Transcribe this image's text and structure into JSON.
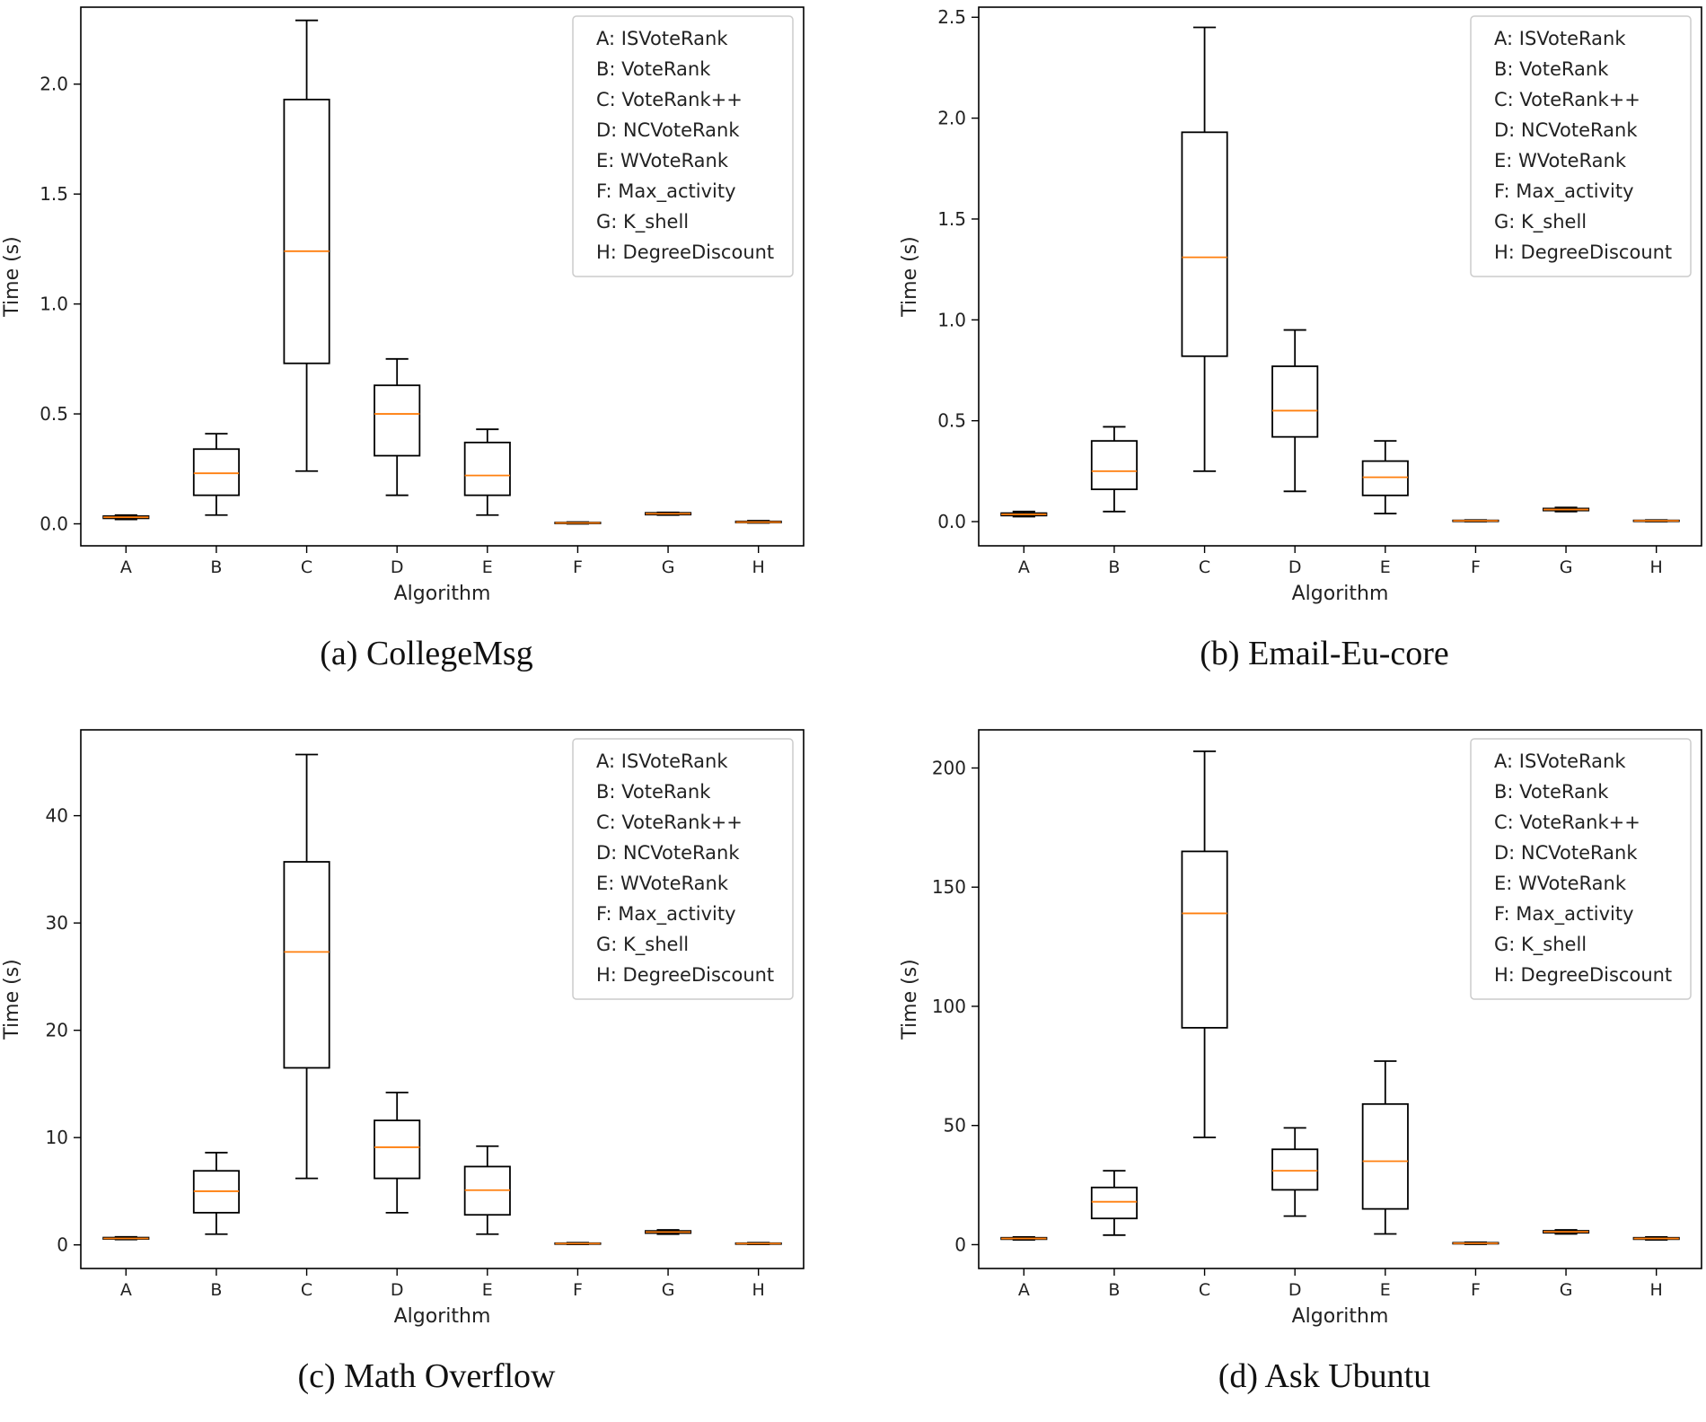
{
  "chart_data": [
    {
      "type": "box",
      "caption": "(a) CollegeMsg",
      "xlabel": "Algorithm",
      "ylabel": "Time (s)",
      "ylim": [
        -0.1,
        2.35
      ],
      "yticks": [
        0.0,
        0.5,
        1.0,
        1.5,
        2.0
      ],
      "ytick_labels": [
        "0.0",
        "0.5",
        "1.0",
        "1.5",
        "2.0"
      ],
      "categories": [
        "A",
        "B",
        "C",
        "D",
        "E",
        "F",
        "G",
        "H"
      ],
      "legend": [
        "A: ISVoteRank",
        "B: VoteRank",
        "C: VoteRank++",
        "D: NCVoteRank",
        "E: WVoteRank",
        "F: Max_activity",
        "G: K_shell",
        "H: DegreeDiscount"
      ],
      "boxes": [
        {
          "min": 0.02,
          "q1": 0.025,
          "median": 0.03,
          "q3": 0.035,
          "max": 0.04
        },
        {
          "min": 0.04,
          "q1": 0.13,
          "median": 0.23,
          "q3": 0.34,
          "max": 0.41
        },
        {
          "min": 0.24,
          "q1": 0.73,
          "median": 1.24,
          "q3": 1.93,
          "max": 2.29
        },
        {
          "min": 0.13,
          "q1": 0.31,
          "median": 0.5,
          "q3": 0.63,
          "max": 0.75
        },
        {
          "min": 0.04,
          "q1": 0.13,
          "median": 0.22,
          "q3": 0.37,
          "max": 0.43
        },
        {
          "min": 0.0,
          "q1": 0.002,
          "median": 0.004,
          "q3": 0.006,
          "max": 0.008
        },
        {
          "min": 0.04,
          "q1": 0.042,
          "median": 0.046,
          "q3": 0.05,
          "max": 0.052
        },
        {
          "min": 0.004,
          "q1": 0.006,
          "median": 0.008,
          "q3": 0.011,
          "max": 0.014
        }
      ]
    },
    {
      "type": "box",
      "caption": "(b) Email-Eu-core",
      "xlabel": "Algorithm",
      "ylabel": "Time (s)",
      "ylim": [
        -0.12,
        2.55
      ],
      "yticks": [
        0.0,
        0.5,
        1.0,
        1.5,
        2.0,
        2.5
      ],
      "ytick_labels": [
        "0.0",
        "0.5",
        "1.0",
        "1.5",
        "2.0",
        "2.5"
      ],
      "categories": [
        "A",
        "B",
        "C",
        "D",
        "E",
        "F",
        "G",
        "H"
      ],
      "legend": [
        "A: ISVoteRank",
        "B: VoteRank",
        "C: VoteRank++",
        "D: NCVoteRank",
        "E: WVoteRank",
        "F: Max_activity",
        "G: K_shell",
        "H: DegreeDiscount"
      ],
      "boxes": [
        {
          "min": 0.025,
          "q1": 0.03,
          "median": 0.036,
          "q3": 0.042,
          "max": 0.05
        },
        {
          "min": 0.05,
          "q1": 0.16,
          "median": 0.25,
          "q3": 0.4,
          "max": 0.47
        },
        {
          "min": 0.25,
          "q1": 0.82,
          "median": 1.31,
          "q3": 1.93,
          "max": 2.45
        },
        {
          "min": 0.15,
          "q1": 0.42,
          "median": 0.55,
          "q3": 0.77,
          "max": 0.95
        },
        {
          "min": 0.04,
          "q1": 0.13,
          "median": 0.22,
          "q3": 0.3,
          "max": 0.4
        },
        {
          "min": 0.0,
          "q1": 0.002,
          "median": 0.004,
          "q3": 0.006,
          "max": 0.008
        },
        {
          "min": 0.05,
          "q1": 0.055,
          "median": 0.06,
          "q3": 0.065,
          "max": 0.07
        },
        {
          "min": 0.0,
          "q1": 0.002,
          "median": 0.004,
          "q3": 0.006,
          "max": 0.008
        }
      ]
    },
    {
      "type": "box",
      "caption": "(c) Math Overflow",
      "xlabel": "Algorithm",
      "ylabel": "Time (s)",
      "ylim": [
        -2.2,
        48
      ],
      "yticks": [
        0,
        10,
        20,
        30,
        40
      ],
      "ytick_labels": [
        "0",
        "10",
        "20",
        "30",
        "40"
      ],
      "categories": [
        "A",
        "B",
        "C",
        "D",
        "E",
        "F",
        "G",
        "H"
      ],
      "legend": [
        "A: ISVoteRank",
        "B: VoteRank",
        "C: VoteRank++",
        "D: NCVoteRank",
        "E: WVoteRank",
        "F: Max_activity",
        "G: K_shell",
        "H: DegreeDiscount"
      ],
      "boxes": [
        {
          "min": 0.5,
          "q1": 0.55,
          "median": 0.6,
          "q3": 0.68,
          "max": 0.75
        },
        {
          "min": 1.0,
          "q1": 3.0,
          "median": 5.0,
          "q3": 6.9,
          "max": 8.6
        },
        {
          "min": 6.2,
          "q1": 16.5,
          "median": 27.3,
          "q3": 35.7,
          "max": 45.7
        },
        {
          "min": 3.0,
          "q1": 6.2,
          "median": 9.1,
          "q3": 11.6,
          "max": 14.2
        },
        {
          "min": 1.0,
          "q1": 2.8,
          "median": 5.1,
          "q3": 7.3,
          "max": 9.2
        },
        {
          "min": 0.05,
          "q1": 0.08,
          "median": 0.12,
          "q3": 0.16,
          "max": 0.2
        },
        {
          "min": 1.0,
          "q1": 1.1,
          "median": 1.2,
          "q3": 1.3,
          "max": 1.4
        },
        {
          "min": 0.05,
          "q1": 0.08,
          "median": 0.12,
          "q3": 0.16,
          "max": 0.2
        }
      ]
    },
    {
      "type": "box",
      "caption": "(d) Ask Ubuntu",
      "xlabel": "Algorithm",
      "ylabel": "Time (s)",
      "ylim": [
        -10,
        216
      ],
      "yticks": [
        0,
        50,
        100,
        150,
        200
      ],
      "ytick_labels": [
        "0",
        "50",
        "100",
        "150",
        "200"
      ],
      "categories": [
        "A",
        "B",
        "C",
        "D",
        "E",
        "F",
        "G",
        "H"
      ],
      "legend": [
        "A: ISVoteRank",
        "B: VoteRank",
        "C: VoteRank++",
        "D: NCVoteRank",
        "E: WVoteRank",
        "F: Max_activity",
        "G: K_shell",
        "H: DegreeDiscount"
      ],
      "boxes": [
        {
          "min": 2.0,
          "q1": 2.3,
          "median": 2.6,
          "q3": 2.9,
          "max": 3.2
        },
        {
          "min": 4.0,
          "q1": 11.0,
          "median": 18.0,
          "q3": 24.0,
          "max": 31.0
        },
        {
          "min": 45.0,
          "q1": 91.0,
          "median": 139.0,
          "q3": 165.0,
          "max": 207.0
        },
        {
          "min": 12.0,
          "q1": 23.0,
          "median": 31.0,
          "q3": 40.0,
          "max": 49.0
        },
        {
          "min": 4.5,
          "q1": 15.0,
          "median": 35.0,
          "q3": 59.0,
          "max": 77.0
        },
        {
          "min": 0.2,
          "q1": 0.4,
          "median": 0.6,
          "q3": 0.8,
          "max": 1.0
        },
        {
          "min": 4.5,
          "q1": 5.0,
          "median": 5.4,
          "q3": 5.8,
          "max": 6.2
        },
        {
          "min": 2.0,
          "q1": 2.3,
          "median": 2.6,
          "q3": 2.9,
          "max": 3.2
        }
      ]
    }
  ],
  "colors": {
    "box": "#000000",
    "median": "#ff7f0e",
    "legend_border": "#cccccc"
  }
}
